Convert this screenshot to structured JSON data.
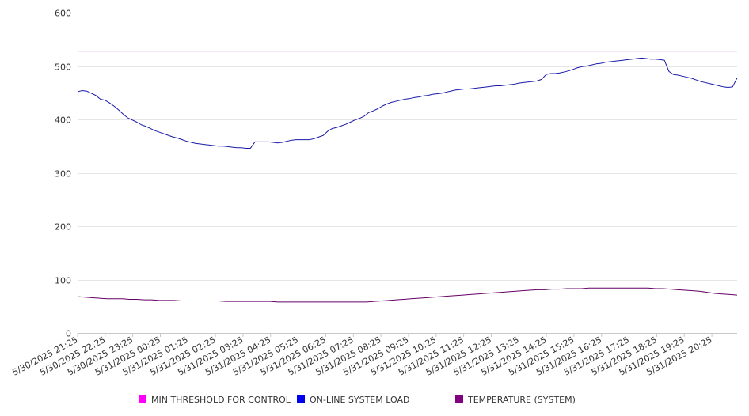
{
  "chart_data": {
    "type": "line",
    "ylim": [
      0,
      600
    ],
    "yticks": [
      0,
      100,
      200,
      300,
      400,
      500,
      600
    ],
    "grid": true,
    "legend_position": "bottom",
    "x_start": "5/30/2025 21:25",
    "x_end": "5/31/2025 21:20",
    "x_step_minutes": 5,
    "x_tick_labels": [
      "5/30/2025 21:25",
      "5/30/2025 22:25",
      "5/30/2025 23:25",
      "5/31/2025 00:25",
      "5/31/2025 01:25",
      "5/31/2025 02:25",
      "5/31/2025 03:25",
      "5/31/2025 04:25",
      "5/31/2025 05:25",
      "5/31/2025 06:25",
      "5/31/2025 07:25",
      "5/31/2025 08:25",
      "5/31/2025 09:25",
      "5/31/2025 10:25",
      "5/31/2025 11:25",
      "5/31/2025 12:25",
      "5/31/2025 13:25",
      "5/31/2025 14:25",
      "5/31/2025 15:25",
      "5/31/2025 16:25",
      "5/31/2025 17:25",
      "5/31/2025 18:25",
      "5/31/2025 19:25",
      "5/31/2025 20:25"
    ],
    "series": [
      {
        "name": "MIN THRESHOLD FOR CONTROL",
        "color": "#cc33cc",
        "legend_color": "#ff00ff",
        "values": [
          528,
          528
        ]
      },
      {
        "name": "ON-LINE SYSTEM LOAD",
        "color": "#1a1aaa",
        "legend_color": "#0000ee",
        "values": [
          452,
          454,
          453,
          449,
          445,
          438,
          436,
          431,
          425,
          418,
          410,
          403,
          399,
          395,
          390,
          387,
          383,
          379,
          376,
          373,
          370,
          367,
          365,
          362,
          359,
          357,
          355,
          354,
          353,
          352,
          351,
          350,
          350,
          349,
          348,
          347,
          347,
          346,
          346,
          358,
          358,
          358,
          358,
          357,
          356,
          357,
          359,
          361,
          362,
          362,
          362,
          362,
          364,
          367,
          370,
          378,
          383,
          385,
          388,
          391,
          395,
          399,
          402,
          406,
          413,
          416,
          420,
          425,
          429,
          432,
          434,
          436,
          438,
          439,
          441,
          442,
          444,
          445,
          447,
          448,
          449,
          451,
          453,
          455,
          456,
          457,
          457,
          458,
          459,
          460,
          461,
          462,
          463,
          463,
          464,
          465,
          466,
          468,
          469,
          470,
          471,
          472,
          475,
          484,
          486,
          486,
          487,
          489,
          491,
          494,
          497,
          499,
          500,
          502,
          504,
          505,
          507,
          508,
          509,
          510,
          511,
          512,
          513,
          514,
          515,
          514,
          513,
          513,
          512,
          511,
          490,
          484,
          483,
          481,
          479,
          477,
          474,
          471,
          469,
          467,
          465,
          463,
          461,
          460,
          461,
          478
        ]
      },
      {
        "name": "TEMPERATURE (SYSTEM)",
        "color": "#660066",
        "legend_color": "#800080",
        "values": [
          68,
          67,
          66,
          65,
          64,
          64,
          64,
          63,
          63,
          62,
          62,
          61,
          61,
          61,
          60,
          60,
          60,
          60,
          60,
          60,
          59,
          59,
          59,
          59,
          59,
          59,
          59,
          58,
          58,
          58,
          58,
          58,
          58,
          58,
          58,
          58,
          58,
          58,
          58,
          58,
          59,
          60,
          61,
          62,
          63,
          64,
          65,
          66,
          67,
          68,
          69,
          70,
          71,
          72,
          73,
          74,
          75,
          76,
          77,
          78,
          79,
          80,
          81,
          81,
          82,
          82,
          83,
          83,
          83,
          84,
          84,
          84,
          84,
          84,
          84,
          84,
          84,
          84,
          83,
          83,
          82,
          81,
          80,
          79,
          78,
          76,
          74,
          73,
          72,
          71
        ]
      }
    ]
  }
}
